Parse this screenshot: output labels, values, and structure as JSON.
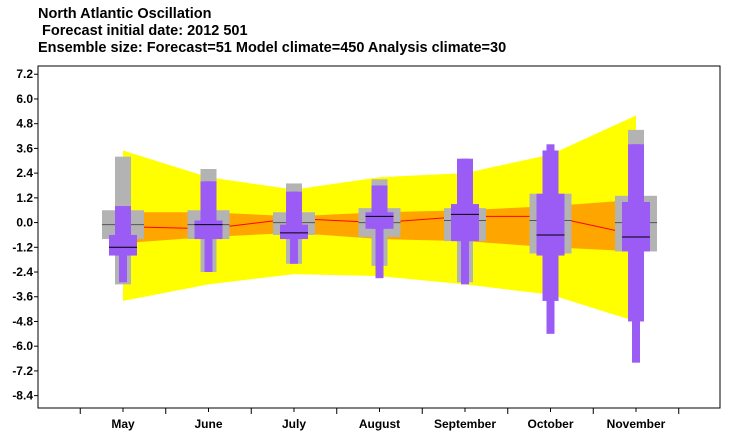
{
  "chart_data": {
    "type": "box",
    "title": "North Atlantic Oscillation",
    "subtitle_1": " Forecast initial date: 2012 501",
    "subtitle_2": "Ensemble size: Forecast=51 Model climate=450 Analysis climate=30",
    "xlabel": "",
    "ylabel": "",
    "ylim": [
      -9.0,
      7.6
    ],
    "yticks": [
      "7.2",
      "6.0",
      "4.8",
      "3.6",
      "2.4",
      "1.2",
      "0.0",
      "-1.2",
      "-2.4",
      "-3.6",
      "-4.8",
      "-6.0",
      "-7.2",
      "-8.4"
    ],
    "categories": [
      "May",
      "June",
      "July",
      "August",
      "September",
      "October",
      "November"
    ],
    "colors": {
      "analysis_outer": "#ffff00",
      "analysis_inner": "#ffa500",
      "analysis_median": "#ff0000",
      "model_climate": "#b3b3b3",
      "forecast": "#9b5cf5",
      "median": "#000000"
    },
    "analysis_climate_band": {
      "outer_upper": [
        3.5,
        2.2,
        1.6,
        2.2,
        2.4,
        3.3,
        5.2
      ],
      "inner_upper": [
        0.5,
        0.5,
        0.3,
        0.5,
        0.6,
        0.8,
        1.1
      ],
      "median": [
        -0.2,
        -0.3,
        0.2,
        0.0,
        0.3,
        0.3,
        -0.6
      ],
      "inner_lower": [
        -1.0,
        -0.7,
        -0.5,
        -0.8,
        -0.9,
        -1.2,
        -1.4
      ],
      "outer_lower": [
        -3.8,
        -3.0,
        -2.5,
        -2.6,
        -3.0,
        -3.5,
        -4.8
      ]
    },
    "model_climate_boxes": [
      {
        "min": -3.0,
        "q1": -0.8,
        "median": -0.1,
        "q3": 0.6,
        "max": 3.2
      },
      {
        "min": -2.4,
        "q1": -0.8,
        "median": -0.1,
        "q3": 0.6,
        "max": 2.6
      },
      {
        "min": -2.0,
        "q1": -0.6,
        "median": 0.0,
        "q3": 0.5,
        "max": 1.9
      },
      {
        "min": -2.1,
        "q1": -0.7,
        "median": 0.0,
        "q3": 0.7,
        "max": 2.1
      },
      {
        "min": -2.9,
        "q1": -0.9,
        "median": 0.1,
        "q3": 0.7,
        "max": 2.6
      },
      {
        "min": -3.8,
        "q1": -1.5,
        "median": 0.1,
        "q3": 1.4,
        "max": 3.5
      },
      {
        "min": -4.8,
        "q1": -1.4,
        "median": 0.0,
        "q3": 1.3,
        "max": 4.5
      }
    ],
    "forecast_boxes": [
      {
        "min": -2.9,
        "p10": -1.6,
        "q1": -1.6,
        "median": -1.2,
        "q3": -0.6,
        "p90": 0.8,
        "max": 0.8
      },
      {
        "min": -2.4,
        "p10": -0.8,
        "q1": -0.8,
        "median": -0.1,
        "q3": 0.1,
        "p90": 2.0,
        "max": 2.0
      },
      {
        "min": -2.0,
        "p10": -0.8,
        "q1": -0.8,
        "median": -0.5,
        "q3": -0.1,
        "p90": 1.5,
        "max": 1.5
      },
      {
        "min": -2.7,
        "p10": -0.3,
        "q1": -0.3,
        "median": 0.3,
        "q3": 0.5,
        "p90": 1.8,
        "max": 1.8
      },
      {
        "min": -3.0,
        "p10": -0.9,
        "q1": -0.9,
        "median": 0.4,
        "q3": 0.9,
        "p90": 3.1,
        "max": 3.1
      },
      {
        "min": -5.4,
        "p10": -3.8,
        "q1": -1.6,
        "median": -0.6,
        "q3": 1.4,
        "p90": 3.5,
        "max": 3.8
      },
      {
        "min": -6.8,
        "p10": -4.8,
        "q1": -1.4,
        "median": -0.7,
        "q3": 1.0,
        "p90": 3.8,
        "max": 3.8
      }
    ]
  }
}
